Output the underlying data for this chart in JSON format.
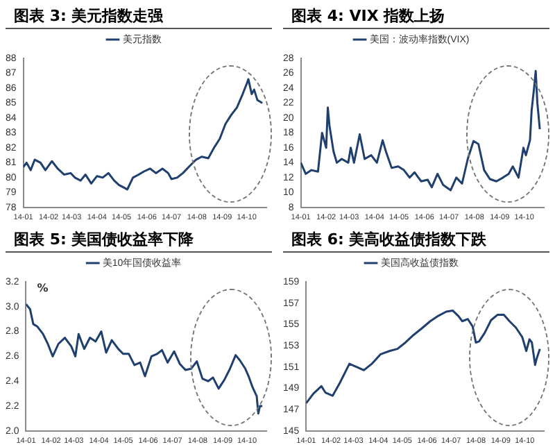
{
  "chart_data": [
    {
      "type": "line",
      "title": "图表 3:  美元指数走强",
      "xlim": [
        "--01-01",
        "--10-25"
      ],
      "ylim": [
        78,
        88
      ],
      "yticks": [
        78,
        79,
        80,
        81,
        82,
        83,
        84,
        85,
        86,
        87,
        88
      ],
      "xticks": [
        {
          "value": "--01-01",
          "label": "14-01"
        },
        {
          "value": "--02-01",
          "label": "14-02"
        },
        {
          "value": "--03-01",
          "label": "14-03"
        },
        {
          "value": "--04-01",
          "label": "14-04"
        },
        {
          "value": "--05-01",
          "label": "14-05"
        },
        {
          "value": "--06-01",
          "label": "14-06"
        },
        {
          "value": "--07-01",
          "label": "14-07"
        },
        {
          "value": "--08-01",
          "label": "14-08"
        },
        {
          "value": "--09-01",
          "label": "14-09"
        },
        {
          "value": "--10-01",
          "label": "14-10"
        }
      ],
      "grid": false,
      "legend": "top",
      "marker": "none",
      "line_style": "solid",
      "x": [
        "--01-01",
        "--01-05",
        "--01-10",
        "--01-15",
        "--01-22",
        "--01-28",
        "--02-05",
        "--02-12",
        "--02-20",
        "--02-28",
        "--03-05",
        "--03-12",
        "--03-18",
        "--03-25",
        "--04-01",
        "--04-08",
        "--04-15",
        "--04-22",
        "--04-28",
        "--05-05",
        "--05-08",
        "--05-15",
        "--05-22",
        "--05-28",
        "--06-05",
        "--06-12",
        "--06-20",
        "--06-27",
        "--07-01",
        "--07-08",
        "--07-15",
        "--07-22",
        "--07-31",
        "--08-07",
        "--08-15",
        "--08-22",
        "--08-29",
        "--09-05",
        "--09-12",
        "--09-19",
        "--09-26",
        "--10-01",
        "--10-03",
        "--10-07",
        "--10-10",
        "--10-14",
        "--10-17",
        "--10-20"
      ],
      "series": [
        {
          "name": "美元指数",
          "color": "#1f3f6e",
          "values": [
            80.7,
            81.0,
            80.5,
            81.2,
            81.0,
            80.5,
            81.1,
            80.6,
            80.2,
            80.3,
            80.0,
            79.8,
            80.2,
            79.6,
            80.1,
            80.0,
            80.3,
            79.8,
            79.5,
            79.3,
            79.2,
            80.0,
            80.2,
            80.4,
            80.6,
            80.3,
            80.6,
            80.3,
            79.9,
            80.0,
            80.3,
            80.7,
            81.2,
            81.4,
            81.3,
            82.0,
            82.6,
            83.6,
            84.2,
            84.7,
            85.6,
            86.3,
            86.6,
            85.6,
            85.9,
            85.2,
            85.1,
            85.0
          ]
        }
      ]
    },
    {
      "type": "line",
      "title": "图表 4:  VIX 指数上扬",
      "xlim": [
        "--01-01",
        "--10-25"
      ],
      "ylim": [
        8,
        28
      ],
      "yticks": [
        8,
        10,
        12,
        14,
        16,
        18,
        20,
        22,
        24,
        26,
        28
      ],
      "xticks": [
        {
          "value": "--01-01",
          "label": "14-01"
        },
        {
          "value": "--02-01",
          "label": "14-02"
        },
        {
          "value": "--03-01",
          "label": "14-03"
        },
        {
          "value": "--04-01",
          "label": "14-04"
        },
        {
          "value": "--05-01",
          "label": "14-05"
        },
        {
          "value": "--06-01",
          "label": "14-06"
        },
        {
          "value": "--07-01",
          "label": "14-07"
        },
        {
          "value": "--08-01",
          "label": "14-08"
        },
        {
          "value": "--09-01",
          "label": "14-09"
        },
        {
          "value": "--10-01",
          "label": "14-10"
        }
      ],
      "grid": false,
      "legend": "top",
      "marker": "none",
      "line_style": "solid",
      "x": [
        "--01-01",
        "--01-07",
        "--01-14",
        "--01-22",
        "--01-27",
        "--02-01",
        "--02-03",
        "--02-05",
        "--02-10",
        "--02-14",
        "--02-20",
        "--02-28",
        "--03-03",
        "--03-07",
        "--03-14",
        "--03-20",
        "--03-28",
        "--04-04",
        "--04-11",
        "--04-15",
        "--04-22",
        "--04-30",
        "--05-07",
        "--05-14",
        "--05-20",
        "--05-28",
        "--06-05",
        "--06-10",
        "--06-17",
        "--06-24",
        "--07-03",
        "--07-10",
        "--07-17",
        "--07-24",
        "--07-31",
        "--08-06",
        "--08-13",
        "--08-20",
        "--08-28",
        "--09-05",
        "--09-12",
        "--09-17",
        "--09-24",
        "--09-30",
        "--10-03",
        "--10-08",
        "--10-10",
        "--10-13",
        "--10-15",
        "--10-17",
        "--10-20"
      ],
      "series": [
        {
          "name": "美国：波动率指数(VIX)",
          "color": "#1f3f6e",
          "values": [
            14.0,
            12.5,
            13.0,
            12.8,
            18.0,
            16.0,
            21.4,
            19.0,
            15.5,
            14.0,
            14.5,
            14.0,
            16.0,
            14.0,
            17.8,
            14.5,
            15.0,
            14.0,
            17.0,
            15.5,
            13.3,
            13.5,
            13.0,
            12.0,
            12.7,
            11.5,
            11.7,
            10.7,
            12.5,
            11.0,
            10.3,
            12.0,
            11.2,
            14.5,
            16.9,
            16.5,
            13.0,
            11.8,
            11.5,
            12.0,
            12.5,
            13.5,
            12.0,
            16.0,
            15.0,
            17.0,
            21.0,
            24.0,
            26.3,
            22.0,
            18.5
          ]
        }
      ]
    },
    {
      "type": "line",
      "title": "图表 5:  美国债收益率下降",
      "ylabel": "%",
      "xlim": [
        "--01-01",
        "--10-25"
      ],
      "ylim": [
        2.0,
        3.2
      ],
      "yticks": [
        {
          "value": 2.0,
          "label": "2.0"
        },
        2.2,
        2.4,
        2.6,
        2.8,
        {
          "value": 3.0,
          "label": "3.0"
        },
        3.2
      ],
      "xticks": [
        {
          "value": "--01-01",
          "label": "14-01"
        },
        {
          "value": "--02-01",
          "label": "14-02"
        },
        {
          "value": "--03-01",
          "label": "14-03"
        },
        {
          "value": "--04-01",
          "label": "14-04"
        },
        {
          "value": "--05-01",
          "label": "14-05"
        },
        {
          "value": "--06-01",
          "label": "14-06"
        },
        {
          "value": "--07-01",
          "label": "14-07"
        },
        {
          "value": "--08-01",
          "label": "14-08"
        },
        {
          "value": "--09-01",
          "label": "14-09"
        },
        {
          "value": "--10-01",
          "label": "14-10"
        }
      ],
      "grid": false,
      "legend": "top",
      "marker": "none",
      "line_style": "solid",
      "x": [
        "--01-01",
        "--01-06",
        "--01-10",
        "--01-15",
        "--01-22",
        "--01-28",
        "--02-03",
        "--02-10",
        "--02-18",
        "--02-26",
        "--03-03",
        "--03-07",
        "--03-14",
        "--03-21",
        "--03-28",
        "--04-04",
        "--04-10",
        "--04-17",
        "--04-25",
        "--05-01",
        "--05-08",
        "--05-15",
        "--05-22",
        "--05-28",
        "--06-05",
        "--06-12",
        "--06-18",
        "--06-25",
        "--07-03",
        "--07-10",
        "--07-17",
        "--07-24",
        "--07-31",
        "--08-07",
        "--08-14",
        "--08-20",
        "--08-27",
        "--09-03",
        "--09-10",
        "--09-17",
        "--09-22",
        "--09-29",
        "--10-03",
        "--10-08",
        "--10-13",
        "--10-15",
        "--10-17",
        "--10-20"
      ],
      "series": [
        {
          "name": "美10年国债收益率",
          "color": "#1f3f6e",
          "values": [
            3.02,
            2.98,
            2.86,
            2.84,
            2.78,
            2.7,
            2.6,
            2.7,
            2.75,
            2.68,
            2.6,
            2.78,
            2.66,
            2.75,
            2.72,
            2.8,
            2.63,
            2.73,
            2.66,
            2.62,
            2.62,
            2.53,
            2.55,
            2.44,
            2.6,
            2.62,
            2.65,
            2.55,
            2.64,
            2.54,
            2.49,
            2.5,
            2.56,
            2.42,
            2.4,
            2.43,
            2.34,
            2.41,
            2.5,
            2.61,
            2.57,
            2.5,
            2.44,
            2.35,
            2.28,
            2.14,
            2.2,
            2.2
          ]
        }
      ]
    },
    {
      "type": "line",
      "title": "图表 6:  美高收益债指数下跌",
      "xlim": [
        "--01-01",
        "--10-25"
      ],
      "ylim": [
        145,
        159
      ],
      "yticks": [
        145,
        147,
        149,
        151,
        153,
        155,
        157,
        159
      ],
      "xticks": [
        {
          "value": "--01-01",
          "label": "14-01"
        },
        {
          "value": "--02-01",
          "label": "14-02"
        },
        {
          "value": "--03-01",
          "label": "14-03"
        },
        {
          "value": "--04-01",
          "label": "14-04"
        },
        {
          "value": "--05-01",
          "label": "14-05"
        },
        {
          "value": "--06-01",
          "label": "14-06"
        },
        {
          "value": "--07-01",
          "label": "14-07"
        },
        {
          "value": "--08-01",
          "label": "14-08"
        },
        {
          "value": "--09-01",
          "label": "14-09"
        },
        {
          "value": "--10-01",
          "label": "14-10"
        }
      ],
      "grid": false,
      "legend": "top",
      "marker": "none",
      "line_style": "solid",
      "x": [
        "--01-01",
        "--01-10",
        "--01-20",
        "--01-25",
        "--02-03",
        "--02-12",
        "--02-24",
        "--03-05",
        "--03-14",
        "--03-24",
        "--04-04",
        "--04-15",
        "--04-25",
        "--05-05",
        "--05-15",
        "--05-25",
        "--06-05",
        "--06-15",
        "--06-25",
        "--07-03",
        "--07-10",
        "--07-15",
        "--07-22",
        "--07-28",
        "--08-01",
        "--08-05",
        "--08-12",
        "--08-20",
        "--08-28",
        "--09-05",
        "--09-12",
        "--09-20",
        "--09-28",
        "--10-03",
        "--10-07",
        "--10-10",
        "--10-14",
        "--10-16",
        "--10-20"
      ],
      "series": [
        {
          "name": "美国高收益债指数",
          "color": "#1f3f6e",
          "values": [
            147.6,
            148.5,
            149.2,
            148.6,
            148.3,
            149.5,
            151.3,
            151.0,
            150.7,
            151.3,
            152.2,
            152.5,
            152.7,
            153.3,
            154.0,
            154.6,
            155.3,
            155.8,
            156.2,
            156.3,
            155.8,
            155.3,
            155.5,
            154.8,
            153.3,
            153.4,
            154.2,
            155.4,
            155.9,
            155.9,
            155.3,
            154.7,
            153.8,
            152.5,
            153.6,
            153.3,
            151.2,
            151.8,
            152.7
          ]
        }
      ]
    }
  ]
}
